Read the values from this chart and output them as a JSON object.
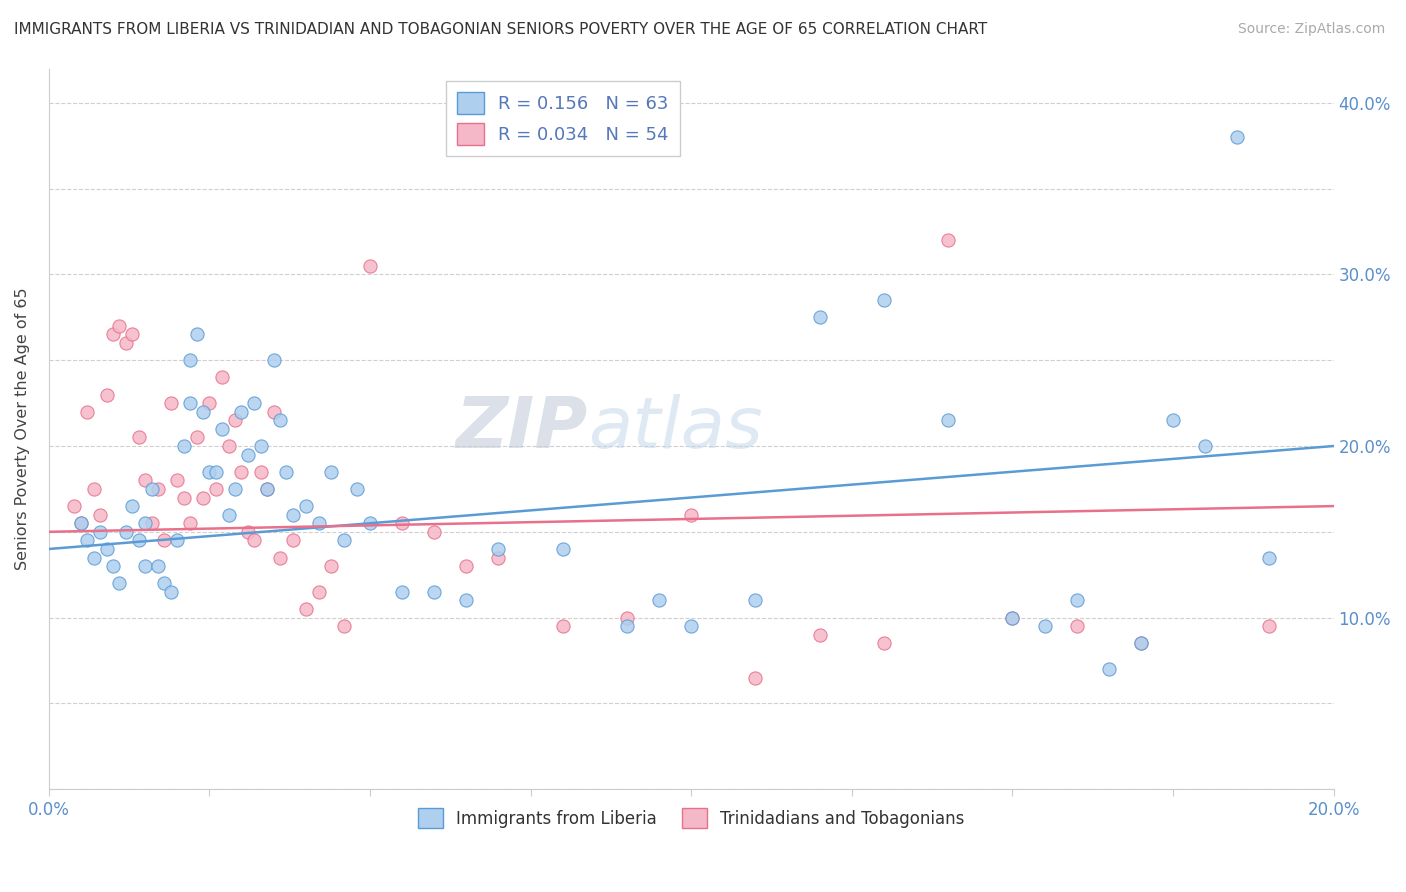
{
  "title": "IMMIGRANTS FROM LIBERIA VS TRINIDADIAN AND TOBAGONIAN SENIORS POVERTY OVER THE AGE OF 65 CORRELATION CHART",
  "source": "Source: ZipAtlas.com",
  "ylabel": "Seniors Poverty Over the Age of 65",
  "xlim": [
    0.0,
    0.2
  ],
  "ylim": [
    0.0,
    0.42
  ],
  "x_ticks": [
    0.0,
    0.025,
    0.05,
    0.075,
    0.1,
    0.125,
    0.15,
    0.175,
    0.2
  ],
  "y_ticks": [
    0.0,
    0.05,
    0.1,
    0.15,
    0.2,
    0.25,
    0.3,
    0.35,
    0.4
  ],
  "legend1_R": "0.156",
  "legend1_N": "63",
  "legend2_R": "0.034",
  "legend2_N": "54",
  "series1_color": "#aecfee",
  "series2_color": "#f5b8c8",
  "line1_color": "#5b9bd5",
  "line2_color": "#e8708a",
  "watermark_zip": "ZIP",
  "watermark_atlas": "atlas",
  "legend_label1": "Immigrants from Liberia",
  "legend_label2": "Trinidadians and Tobagonians",
  "blue_scatter_x": [
    0.005,
    0.006,
    0.007,
    0.008,
    0.009,
    0.01,
    0.011,
    0.012,
    0.013,
    0.014,
    0.015,
    0.015,
    0.016,
    0.017,
    0.018,
    0.019,
    0.02,
    0.021,
    0.022,
    0.022,
    0.023,
    0.024,
    0.025,
    0.026,
    0.027,
    0.028,
    0.029,
    0.03,
    0.031,
    0.032,
    0.033,
    0.034,
    0.035,
    0.036,
    0.037,
    0.038,
    0.04,
    0.042,
    0.044,
    0.046,
    0.048,
    0.05,
    0.055,
    0.06,
    0.065,
    0.07,
    0.08,
    0.09,
    0.095,
    0.1,
    0.11,
    0.12,
    0.13,
    0.14,
    0.15,
    0.155,
    0.16,
    0.165,
    0.17,
    0.175,
    0.18,
    0.185,
    0.19
  ],
  "blue_scatter_y": [
    0.155,
    0.145,
    0.135,
    0.15,
    0.14,
    0.13,
    0.12,
    0.15,
    0.165,
    0.145,
    0.13,
    0.155,
    0.175,
    0.13,
    0.12,
    0.115,
    0.145,
    0.2,
    0.25,
    0.225,
    0.265,
    0.22,
    0.185,
    0.185,
    0.21,
    0.16,
    0.175,
    0.22,
    0.195,
    0.225,
    0.2,
    0.175,
    0.25,
    0.215,
    0.185,
    0.16,
    0.165,
    0.155,
    0.185,
    0.145,
    0.175,
    0.155,
    0.115,
    0.115,
    0.11,
    0.14,
    0.14,
    0.095,
    0.11,
    0.095,
    0.11,
    0.275,
    0.285,
    0.215,
    0.1,
    0.095,
    0.11,
    0.07,
    0.085,
    0.215,
    0.2,
    0.38,
    0.135
  ],
  "pink_scatter_x": [
    0.004,
    0.005,
    0.006,
    0.007,
    0.008,
    0.009,
    0.01,
    0.011,
    0.012,
    0.013,
    0.014,
    0.015,
    0.016,
    0.017,
    0.018,
    0.019,
    0.02,
    0.021,
    0.022,
    0.023,
    0.024,
    0.025,
    0.026,
    0.027,
    0.028,
    0.029,
    0.03,
    0.031,
    0.032,
    0.033,
    0.034,
    0.035,
    0.036,
    0.038,
    0.04,
    0.042,
    0.044,
    0.046,
    0.05,
    0.055,
    0.06,
    0.065,
    0.07,
    0.08,
    0.09,
    0.1,
    0.11,
    0.12,
    0.13,
    0.14,
    0.15,
    0.16,
    0.17,
    0.19
  ],
  "pink_scatter_y": [
    0.165,
    0.155,
    0.22,
    0.175,
    0.16,
    0.23,
    0.265,
    0.27,
    0.26,
    0.265,
    0.205,
    0.18,
    0.155,
    0.175,
    0.145,
    0.225,
    0.18,
    0.17,
    0.155,
    0.205,
    0.17,
    0.225,
    0.175,
    0.24,
    0.2,
    0.215,
    0.185,
    0.15,
    0.145,
    0.185,
    0.175,
    0.22,
    0.135,
    0.145,
    0.105,
    0.115,
    0.13,
    0.095,
    0.305,
    0.155,
    0.15,
    0.13,
    0.135,
    0.095,
    0.1,
    0.16,
    0.065,
    0.09,
    0.085,
    0.32,
    0.1,
    0.095,
    0.085,
    0.095
  ],
  "line1_x": [
    0.0,
    0.2
  ],
  "line1_y": [
    0.14,
    0.2
  ],
  "line2_x": [
    0.0,
    0.2
  ],
  "line2_y": [
    0.15,
    0.165
  ]
}
